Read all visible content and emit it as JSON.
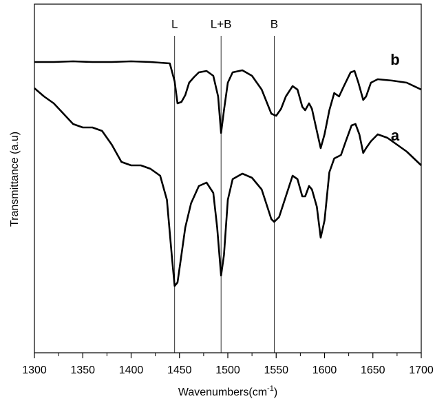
{
  "chart_data": {
    "type": "line",
    "ylabel": "Transmittance (a.u)",
    "xlabel": [
      "Wavenumbers(cm",
      "-1",
      ")"
    ],
    "xlim": [
      1300,
      1700
    ],
    "xticks": [
      1300,
      1350,
      1400,
      1450,
      1500,
      1550,
      1600,
      1650,
      1700
    ],
    "xminorticks": [
      1325,
      1375,
      1425,
      1475,
      1525,
      1575,
      1625,
      1675
    ],
    "ylim": [
      0,
      506
    ],
    "annotations": [
      {
        "label": "L",
        "x": 1445
      },
      {
        "label": "L+B",
        "x": 1493
      },
      {
        "label": "B",
        "x": 1548
      }
    ],
    "series": [
      {
        "name": "a",
        "color": "#000000",
        "x": [
          1300,
          1310,
          1320,
          1330,
          1340,
          1350,
          1360,
          1370,
          1380,
          1390,
          1400,
          1410,
          1420,
          1430,
          1437,
          1442,
          1445,
          1448,
          1452,
          1456,
          1462,
          1470,
          1478,
          1485,
          1489,
          1493,
          1496,
          1500,
          1505,
          1515,
          1525,
          1535,
          1545,
          1548,
          1553,
          1560,
          1567,
          1572,
          1577,
          1580,
          1584,
          1587,
          1592,
          1596,
          1600,
          1605,
          1610,
          1617,
          1622,
          1628,
          1632,
          1636,
          1640,
          1643,
          1648,
          1655,
          1665,
          1675,
          1685,
          1700
        ],
        "values": [
          384,
          372,
          362,
          347,
          332,
          327,
          327,
          322,
          302,
          277,
          272,
          272,
          267,
          257,
          222,
          142,
          97,
          102,
          142,
          182,
          217,
          242,
          247,
          232,
          182,
          112,
          142,
          222,
          252,
          260,
          254,
          237,
          194,
          190,
          197,
          227,
          257,
          252,
          227,
          227,
          242,
          237,
          212,
          167,
          192,
          262,
          282,
          287,
          307,
          330,
          332,
          317,
          290,
          297,
          307,
          317,
          312,
          302,
          292,
          272
        ]
      },
      {
        "name": "b",
        "color": "#000000",
        "x": [
          1300,
          1320,
          1340,
          1360,
          1380,
          1400,
          1420,
          1440,
          1445,
          1448,
          1452,
          1456,
          1460,
          1465,
          1470,
          1478,
          1485,
          1490,
          1493,
          1496,
          1500,
          1505,
          1515,
          1525,
          1535,
          1545,
          1550,
          1555,
          1560,
          1567,
          1572,
          1577,
          1580,
          1584,
          1587,
          1592,
          1596,
          1600,
          1605,
          1610,
          1615,
          1620,
          1627,
          1631,
          1635,
          1640,
          1643,
          1648,
          1655,
          1670,
          1685,
          1700
        ],
        "values": [
          422,
          422,
          423,
          422,
          422,
          423,
          422,
          420,
          394,
          362,
          364,
          374,
          392,
          400,
          407,
          409,
          402,
          372,
          319,
          352,
          392,
          407,
          410,
          402,
          382,
          347,
          344,
          354,
          372,
          387,
          382,
          357,
          352,
          362,
          354,
          322,
          297,
          317,
          352,
          377,
          372,
          387,
          407,
          409,
          392,
          367,
          372,
          392,
          397,
          395,
          392,
          382
        ]
      }
    ]
  }
}
